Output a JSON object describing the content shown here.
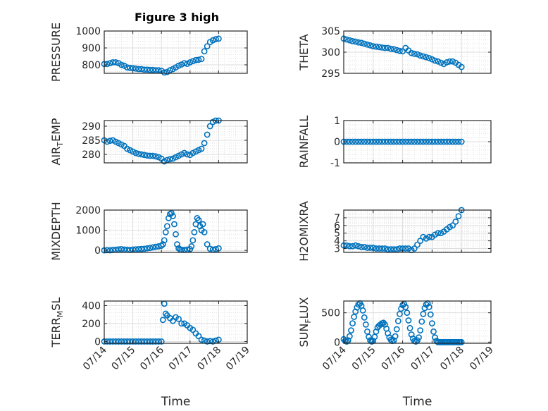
{
  "figure": {
    "title": "Figure 3 high"
  },
  "chart_data": [
    {
      "type": "scatter",
      "panel": "pressure",
      "title": "Figure 3 high",
      "ylabel": "PRESSURE",
      "ylim": [
        750,
        1000
      ],
      "yticks": [
        800,
        900,
        1000
      ],
      "xlim": [
        0,
        5
      ],
      "xticks": [
        "07/14",
        "07/15",
        "07/16",
        "07/17",
        "07/18",
        "07/19"
      ],
      "xlabel": "",
      "grid": true,
      "marker_color": "#0072BD",
      "x": [
        0,
        0.1,
        0.2,
        0.3,
        0.4,
        0.5,
        0.6,
        0.7,
        0.8,
        0.9,
        1.0,
        1.1,
        1.2,
        1.3,
        1.4,
        1.5,
        1.6,
        1.7,
        1.8,
        1.9,
        2.0,
        2.1,
        2.2,
        2.3,
        2.4,
        2.5,
        2.6,
        2.7,
        2.8,
        2.9,
        3.0,
        3.1,
        3.2,
        3.3,
        3.4,
        3.5,
        3.6,
        3.7,
        3.8,
        3.9,
        4.0
      ],
      "y": [
        805,
        805,
        810,
        815,
        815,
        810,
        800,
        795,
        785,
        782,
        780,
        778,
        775,
        775,
        772,
        772,
        770,
        770,
        768,
        768,
        765,
        755,
        758,
        768,
        775,
        785,
        795,
        802,
        810,
        806,
        815,
        822,
        828,
        830,
        835,
        880,
        910,
        935,
        945,
        952,
        955
      ]
    },
    {
      "type": "scatter",
      "panel": "theta",
      "ylabel": "THETA",
      "ylim": [
        295,
        305
      ],
      "yticks": [
        295,
        300,
        305
      ],
      "xlim": [
        0,
        5
      ],
      "xticks": [
        "07/14",
        "07/15",
        "07/16",
        "07/17",
        "07/18",
        "07/19"
      ],
      "xlabel": "",
      "grid": true,
      "marker_color": "#0072BD",
      "x": [
        0,
        0.1,
        0.2,
        0.3,
        0.4,
        0.5,
        0.6,
        0.7,
        0.8,
        0.9,
        1.0,
        1.1,
        1.2,
        1.3,
        1.4,
        1.5,
        1.6,
        1.7,
        1.8,
        1.9,
        2.0,
        2.1,
        2.2,
        2.3,
        2.4,
        2.5,
        2.6,
        2.7,
        2.8,
        2.9,
        3.0,
        3.1,
        3.2,
        3.3,
        3.4,
        3.5,
        3.6,
        3.7,
        3.8,
        3.9,
        4.0
      ],
      "y": [
        303.2,
        303.0,
        302.8,
        302.6,
        302.5,
        302.3,
        302.2,
        302.0,
        301.8,
        301.6,
        301.4,
        301.3,
        301.2,
        301.1,
        301.0,
        301.0,
        300.8,
        300.7,
        300.5,
        300.3,
        300.2,
        301.0,
        300.4,
        299.8,
        299.6,
        299.5,
        299.2,
        299.0,
        298.8,
        298.6,
        298.3,
        298.0,
        297.8,
        297.5,
        297.2,
        297.6,
        297.8,
        297.8,
        297.5,
        297.0,
        296.5
      ]
    },
    {
      "type": "scatter",
      "panel": "air_temp",
      "ylabel": "AIR_TEMP",
      "ylim": [
        277,
        292
      ],
      "yticks": [
        280,
        285,
        290
      ],
      "xlim": [
        0,
        5
      ],
      "xticks": [
        "07/14",
        "07/15",
        "07/16",
        "07/17",
        "07/18",
        "07/19"
      ],
      "xlabel": "",
      "grid": true,
      "marker_color": "#0072BD",
      "x": [
        0,
        0.1,
        0.2,
        0.3,
        0.4,
        0.5,
        0.6,
        0.7,
        0.8,
        0.9,
        1.0,
        1.1,
        1.2,
        1.3,
        1.4,
        1.5,
        1.6,
        1.7,
        1.8,
        1.9,
        2.0,
        2.1,
        2.2,
        2.3,
        2.4,
        2.5,
        2.6,
        2.7,
        2.8,
        2.9,
        3.0,
        3.1,
        3.2,
        3.3,
        3.4,
        3.5,
        3.6,
        3.7,
        3.8,
        3.9,
        4.0
      ],
      "y": [
        285,
        284.5,
        284.8,
        285,
        284.5,
        284,
        283.5,
        283,
        282,
        281.5,
        281,
        280.5,
        280.2,
        280,
        279.8,
        279.6,
        279.5,
        279.5,
        279.3,
        279,
        278.5,
        277.5,
        278,
        278.3,
        278.5,
        279,
        279.5,
        280,
        280.5,
        280,
        279.8,
        280.5,
        281,
        281.5,
        282,
        284,
        287,
        290,
        291.5,
        292,
        292
      ]
    },
    {
      "type": "scatter",
      "panel": "rainfall",
      "ylabel": "RAINFALL",
      "ylim": [
        -1,
        1
      ],
      "yticks": [
        -1,
        0,
        1
      ],
      "xlim": [
        0,
        5
      ],
      "xticks": [
        "07/14",
        "07/15",
        "07/16",
        "07/17",
        "07/18",
        "07/19"
      ],
      "xlabel": "",
      "grid": true,
      "marker_color": "#0072BD",
      "x": [
        0,
        0.1,
        0.2,
        0.3,
        0.4,
        0.5,
        0.6,
        0.7,
        0.8,
        0.9,
        1.0,
        1.1,
        1.2,
        1.3,
        1.4,
        1.5,
        1.6,
        1.7,
        1.8,
        1.9,
        2.0,
        2.1,
        2.2,
        2.3,
        2.4,
        2.5,
        2.6,
        2.7,
        2.8,
        2.9,
        3.0,
        3.1,
        3.2,
        3.3,
        3.4,
        3.5,
        3.6,
        3.7,
        3.8,
        3.9,
        4.0
      ],
      "y": [
        0,
        0,
        0,
        0,
        0,
        0,
        0,
        0,
        0,
        0,
        0,
        0,
        0,
        0,
        0,
        0,
        0,
        0,
        0,
        0,
        0,
        0,
        0,
        0,
        0,
        0,
        0,
        0,
        0,
        0,
        0,
        0,
        0,
        0,
        0,
        0,
        0,
        0,
        0,
        0,
        0
      ]
    },
    {
      "type": "scatter",
      "panel": "mixdepth",
      "ylabel": "MIXDEPTH",
      "ylim": [
        -100,
        2000
      ],
      "yticks": [
        0,
        1000,
        2000
      ],
      "xlim": [
        0,
        5
      ],
      "xticks": [
        "07/14",
        "07/15",
        "07/16",
        "07/17",
        "07/18",
        "07/19"
      ],
      "xlabel": "",
      "grid": true,
      "marker_color": "#0072BD",
      "x": [
        0,
        0.1,
        0.2,
        0.3,
        0.4,
        0.5,
        0.6,
        0.7,
        0.8,
        0.9,
        1.0,
        1.1,
        1.2,
        1.3,
        1.4,
        1.5,
        1.6,
        1.7,
        1.8,
        1.9,
        2.0,
        2.05,
        2.1,
        2.15,
        2.2,
        2.25,
        2.3,
        2.35,
        2.4,
        2.45,
        2.5,
        2.55,
        2.6,
        2.65,
        2.7,
        2.8,
        2.9,
        3.0,
        3.05,
        3.1,
        3.15,
        3.2,
        3.25,
        3.3,
        3.35,
        3.4,
        3.45,
        3.5,
        3.6,
        3.7,
        3.8,
        3.9,
        4.0
      ],
      "y": [
        0,
        10,
        5,
        20,
        30,
        50,
        60,
        40,
        30,
        20,
        40,
        50,
        60,
        70,
        80,
        100,
        120,
        150,
        180,
        200,
        230,
        300,
        500,
        900,
        1200,
        1600,
        1800,
        1850,
        1700,
        1300,
        800,
        300,
        100,
        50,
        30,
        20,
        40,
        60,
        200,
        500,
        900,
        1300,
        1600,
        1500,
        1200,
        1000,
        1300,
        900,
        300,
        80,
        40,
        60,
        100
      ]
    },
    {
      "type": "scatter",
      "panel": "h2omixra",
      "ylabel": "H2OMIXRA",
      "ylim": [
        2.5,
        8
      ],
      "yticks": [
        3,
        4,
        5,
        6,
        7
      ],
      "xlim": [
        0,
        5
      ],
      "xticks": [
        "07/14",
        "07/15",
        "07/16",
        "07/17",
        "07/18",
        "07/19"
      ],
      "xlabel": "",
      "grid": true,
      "marker_color": "#0072BD",
      "x": [
        0,
        0.1,
        0.2,
        0.3,
        0.4,
        0.5,
        0.6,
        0.7,
        0.8,
        0.9,
        1.0,
        1.1,
        1.2,
        1.3,
        1.4,
        1.5,
        1.6,
        1.7,
        1.8,
        1.9,
        2.0,
        2.1,
        2.2,
        2.3,
        2.4,
        2.5,
        2.6,
        2.7,
        2.8,
        2.9,
        3.0,
        3.1,
        3.2,
        3.3,
        3.4,
        3.5,
        3.6,
        3.7,
        3.8,
        3.9,
        4.0
      ],
      "y": [
        3.4,
        3.4,
        3.3,
        3.3,
        3.4,
        3.3,
        3.2,
        3.2,
        3.1,
        3.1,
        3.1,
        3.0,
        3.0,
        3.0,
        3.0,
        2.9,
        2.9,
        2.9,
        2.9,
        3.0,
        3.0,
        3.0,
        3.0,
        2.8,
        3.0,
        3.5,
        4.0,
        4.5,
        4.3,
        4.5,
        4.5,
        4.8,
        5.0,
        5.0,
        5.2,
        5.5,
        5.8,
        6.0,
        6.5,
        7.2,
        8.0
      ]
    },
    {
      "type": "scatter",
      "panel": "terr_msl",
      "ylabel": "TERR_MSL",
      "ylim": [
        -20,
        450
      ],
      "yticks": [
        0,
        200,
        400
      ],
      "xlim": [
        0,
        5
      ],
      "xticks": [
        "07/14",
        "07/15",
        "07/16",
        "07/17",
        "07/18",
        "07/19"
      ],
      "xlabel": "Time",
      "grid": true,
      "marker_color": "#0072BD",
      "x": [
        0,
        0.1,
        0.2,
        0.3,
        0.4,
        0.5,
        0.6,
        0.7,
        0.8,
        0.9,
        1.0,
        1.1,
        1.2,
        1.3,
        1.4,
        1.5,
        1.6,
        1.7,
        1.8,
        1.9,
        2.0,
        2.05,
        2.1,
        2.15,
        2.2,
        2.3,
        2.4,
        2.5,
        2.6,
        2.7,
        2.8,
        2.9,
        3.0,
        3.1,
        3.2,
        3.3,
        3.4,
        3.5,
        3.6,
        3.7,
        3.8,
        3.9,
        4.0
      ],
      "y": [
        0,
        0,
        0,
        0,
        0,
        0,
        0,
        0,
        0,
        0,
        0,
        0,
        0,
        0,
        0,
        0,
        0,
        0,
        0,
        0,
        0,
        240,
        420,
        310,
        290,
        260,
        230,
        270,
        250,
        200,
        200,
        180,
        150,
        130,
        90,
        60,
        20,
        10,
        0,
        5,
        0,
        10,
        20
      ]
    },
    {
      "type": "scatter",
      "panel": "sun_flux",
      "ylabel": "SUN_FLUX",
      "ylim": [
        -20,
        700
      ],
      "yticks": [
        0,
        500
      ],
      "xlim": [
        0,
        5
      ],
      "xticks": [
        "07/14",
        "07/15",
        "07/16",
        "07/17",
        "07/18",
        "07/19"
      ],
      "xlabel": "Time",
      "grid": true,
      "marker_color": "#0072BD",
      "x": [
        0,
        0.05,
        0.1,
        0.15,
        0.2,
        0.25,
        0.3,
        0.35,
        0.4,
        0.45,
        0.5,
        0.55,
        0.6,
        0.65,
        0.7,
        0.75,
        0.8,
        0.85,
        0.9,
        0.95,
        1.0,
        1.05,
        1.1,
        1.15,
        1.2,
        1.25,
        1.3,
        1.35,
        1.4,
        1.45,
        1.5,
        1.55,
        1.6,
        1.65,
        1.7,
        1.75,
        1.8,
        1.85,
        1.9,
        1.95,
        2.0,
        2.05,
        2.1,
        2.15,
        2.2,
        2.25,
        2.3,
        2.35,
        2.4,
        2.45,
        2.5,
        2.55,
        2.6,
        2.65,
        2.7,
        2.75,
        2.8,
        2.85,
        2.9,
        2.95,
        3.0,
        3.05,
        3.1,
        3.15,
        3.2,
        3.25,
        3.3,
        3.35,
        3.4,
        3.45,
        3.5,
        3.55,
        3.6,
        3.65,
        3.7,
        3.75,
        3.8,
        3.85,
        3.9,
        3.95,
        4.0
      ],
      "y": [
        50,
        20,
        10,
        30,
        100,
        200,
        320,
        430,
        520,
        590,
        640,
        660,
        620,
        540,
        420,
        300,
        180,
        90,
        30,
        10,
        20,
        90,
        180,
        250,
        280,
        300,
        320,
        330,
        300,
        230,
        150,
        80,
        40,
        20,
        30,
        100,
        220,
        360,
        480,
        570,
        630,
        650,
        600,
        500,
        370,
        240,
        130,
        60,
        20,
        10,
        30,
        80,
        200,
        350,
        480,
        580,
        640,
        660,
        600,
        470,
        320,
        180,
        80,
        20,
        0,
        0,
        0,
        0,
        0,
        0,
        0,
        0,
        0,
        0,
        0,
        0,
        0,
        0,
        0,
        0,
        0
      ]
    }
  ]
}
